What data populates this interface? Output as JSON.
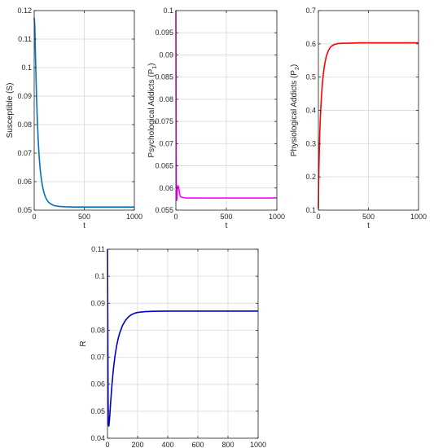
{
  "chart_data": [
    {
      "type": "line",
      "title": "",
      "xlabel": "t",
      "ylabel": "Susceptible (S)",
      "xlim": [
        0,
        1000
      ],
      "ylim": [
        0.05,
        0.12
      ],
      "xticks": [
        0,
        500,
        1000
      ],
      "yticks": [
        0.05,
        0.06,
        0.07,
        0.08,
        0.09,
        0.1,
        0.11,
        0.12
      ],
      "grid": true,
      "color": "#0072BD",
      "series": [
        {
          "x": [
            0,
            3,
            6,
            10,
            15,
            20,
            25,
            30,
            40,
            50,
            60,
            70,
            80,
            90,
            100,
            120,
            140,
            160,
            180,
            200,
            250,
            300,
            400,
            500,
            600,
            700,
            800,
            900,
            1000
          ],
          "values": [
            0.1175,
            0.1165,
            0.1145,
            0.1085,
            0.101,
            0.094,
            0.0878,
            0.0828,
            0.0745,
            0.0685,
            0.0642,
            0.0612,
            0.059,
            0.0572,
            0.0558,
            0.054,
            0.0529,
            0.0523,
            0.0519,
            0.0516,
            0.0513,
            0.0512,
            0.0511,
            0.0511,
            0.0511,
            0.0511,
            0.0511,
            0.0511,
            0.0511
          ]
        }
      ]
    },
    {
      "type": "line",
      "title": "",
      "xlabel": "t",
      "ylabel": "Psychological Addicts (P",
      "ylabel_sub": "1",
      "ylabel_end": ")",
      "xlim": [
        0,
        1000
      ],
      "ylim": [
        0.055,
        0.1
      ],
      "xticks": [
        0,
        500,
        1000
      ],
      "yticks": [
        0.055,
        0.06,
        0.065,
        0.07,
        0.075,
        0.08,
        0.085,
        0.09,
        0.095,
        0.1
      ],
      "grid": true,
      "color": "#FF00FF",
      "series": [
        {
          "x": [
            0,
            1,
            2,
            4,
            6,
            8,
            10,
            13,
            16,
            20,
            25,
            30,
            35,
            40,
            45,
            50,
            60,
            80,
            100,
            150,
            200,
            300,
            500,
            700,
            1000
          ],
          "values": [
            0.1,
            0.09,
            0.075,
            0.062,
            0.058,
            0.0572,
            0.0574,
            0.0585,
            0.0597,
            0.0605,
            0.0604,
            0.0598,
            0.059,
            0.0584,
            0.0581,
            0.058,
            0.0579,
            0.0578,
            0.05775,
            0.05775,
            0.05775,
            0.05775,
            0.05775,
            0.05775,
            0.05775
          ]
        }
      ]
    },
    {
      "type": "line",
      "title": "",
      "xlabel": "t",
      "ylabel": "Physiological Addicts (P",
      "ylabel_sub": "2",
      "ylabel_end": ")",
      "xlim": [
        0,
        1000
      ],
      "ylim": [
        0.1,
        0.7
      ],
      "xticks": [
        0,
        500,
        1000
      ],
      "yticks": [
        0.1,
        0.2,
        0.3,
        0.4,
        0.5,
        0.6,
        0.7
      ],
      "grid": true,
      "color": "#FF0000",
      "series": [
        {
          "x": [
            0,
            2,
            5,
            10,
            15,
            20,
            30,
            40,
            50,
            60,
            70,
            80,
            100,
            120,
            140,
            160,
            180,
            200,
            250,
            300,
            400,
            500,
            600,
            800,
            1000
          ],
          "values": [
            0.105,
            0.16,
            0.22,
            0.29,
            0.34,
            0.38,
            0.44,
            0.48,
            0.51,
            0.533,
            0.55,
            0.563,
            0.58,
            0.59,
            0.595,
            0.598,
            0.6,
            0.601,
            0.602,
            0.602,
            0.603,
            0.603,
            0.603,
            0.603,
            0.603
          ]
        }
      ]
    },
    {
      "type": "line",
      "title": "",
      "xlabel": "t",
      "ylabel": "R",
      "xlim": [
        0,
        1000
      ],
      "ylim": [
        0.04,
        0.11
      ],
      "xticks": [
        0,
        200,
        400,
        600,
        800,
        1000
      ],
      "yticks": [
        0.04,
        0.05,
        0.06,
        0.07,
        0.08,
        0.09,
        0.1,
        0.11
      ],
      "grid": true,
      "color": "#0000CC",
      "series": [
        {
          "x": [
            0,
            2,
            4,
            6,
            8,
            10,
            15,
            20,
            30,
            40,
            50,
            60,
            70,
            80,
            100,
            120,
            140,
            160,
            180,
            200,
            250,
            300,
            400,
            500,
            600,
            800,
            1000
          ],
          "values": [
            0.11,
            0.085,
            0.055,
            0.0455,
            0.0445,
            0.0448,
            0.048,
            0.0525,
            0.06,
            0.066,
            0.0705,
            0.074,
            0.0767,
            0.0788,
            0.0818,
            0.0837,
            0.085,
            0.0858,
            0.0863,
            0.0866,
            0.0869,
            0.087,
            0.0871,
            0.0871,
            0.0871,
            0.0871,
            0.0871
          ]
        }
      ]
    }
  ]
}
